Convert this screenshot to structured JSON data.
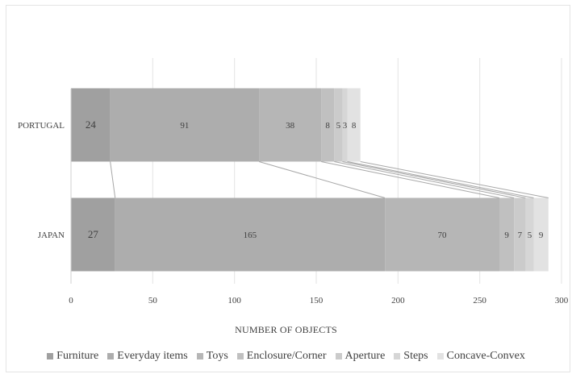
{
  "chart_data": {
    "type": "bar",
    "stacked": true,
    "orientation": "horizontal",
    "title": "",
    "xlabel": "NUMBER OF OBJECTS",
    "ylabel": "",
    "xlim": [
      0,
      300
    ],
    "x_ticks": [
      0,
      50,
      100,
      150,
      200,
      250,
      300
    ],
    "grid": true,
    "legend_position": "bottom",
    "series_lines": true,
    "categories": [
      "PORTUGAL",
      "JAPAN"
    ],
    "series": [
      {
        "name": "Furniture",
        "color": "#a0a0a0",
        "values": [
          24,
          27
        ]
      },
      {
        "name": "Everyday items",
        "color": "#adadad",
        "values": [
          91,
          165
        ]
      },
      {
        "name": "Toys",
        "color": "#b6b6b6",
        "values": [
          38,
          70
        ]
      },
      {
        "name": "Enclosure/Corner",
        "color": "#c0c0c0",
        "values": [
          8,
          9
        ]
      },
      {
        "name": "Aperture",
        "color": "#cbcbcb",
        "values": [
          5,
          7
        ]
      },
      {
        "name": "Steps",
        "color": "#d6d6d6",
        "values": [
          3,
          5
        ]
      },
      {
        "name": "Concave-Convex",
        "color": "#e2e2e2",
        "values": [
          8,
          9
        ]
      }
    ]
  }
}
